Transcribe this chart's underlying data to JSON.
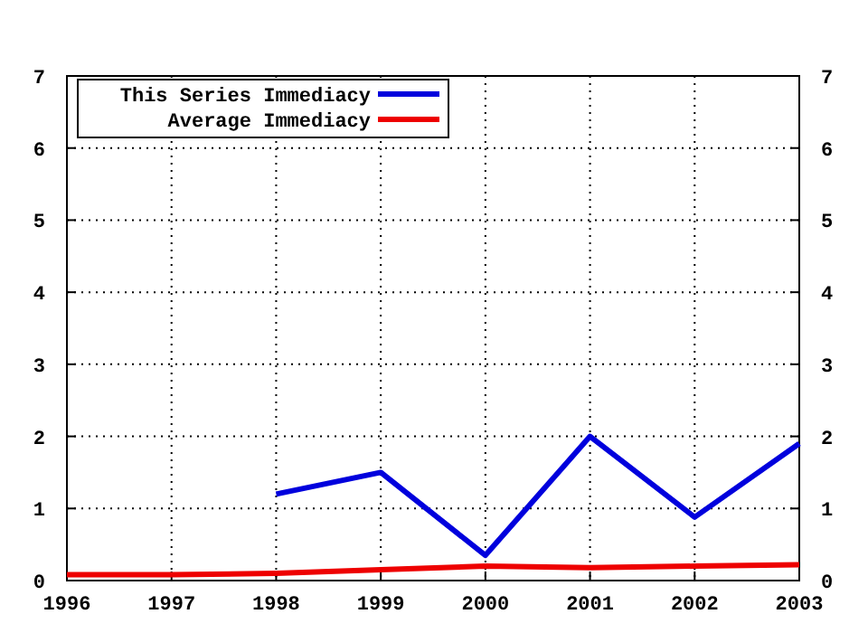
{
  "chart_data": {
    "type": "line",
    "x": [
      1996,
      1997,
      1998,
      1999,
      2000,
      2001,
      2002,
      2003
    ],
    "xlim": [
      1996,
      2003
    ],
    "xticks": [
      1996,
      1997,
      1998,
      1999,
      2000,
      2001,
      2002,
      2003
    ],
    "ylim": [
      0,
      7
    ],
    "yticks": [
      0,
      1,
      2,
      3,
      4,
      5,
      6,
      7
    ],
    "y2lim": [
      0,
      7
    ],
    "y2ticks": [
      0,
      1,
      2,
      3,
      4,
      5,
      6,
      7
    ],
    "grid": true,
    "legend": "top left",
    "line_style": "solid",
    "marker": "none",
    "series": [
      {
        "name": "This Series Immediacy",
        "color": "#0000dd",
        "values": [
          null,
          null,
          1.2,
          1.5,
          0.35,
          2.0,
          0.88,
          1.9
        ]
      },
      {
        "name": "Average Immediacy",
        "color": "#ee0000",
        "values": [
          0.08,
          0.08,
          0.1,
          0.15,
          0.2,
          0.18,
          0.2,
          0.22
        ]
      }
    ]
  }
}
